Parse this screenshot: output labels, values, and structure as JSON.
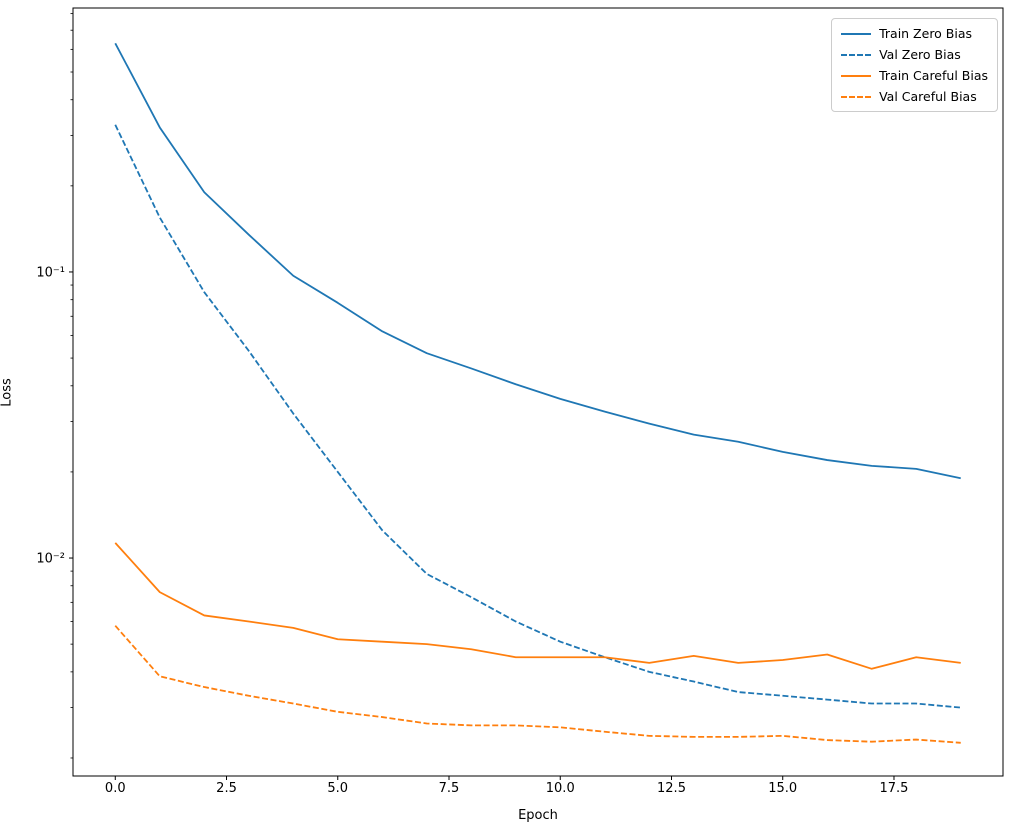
{
  "colors": {
    "blue": "#1f77b4",
    "orange": "#ff7f0e",
    "axis": "#000000",
    "legend_border": "#cccccc",
    "background": "#ffffff"
  },
  "chart_data": {
    "type": "line",
    "title": "",
    "xlabel": "Epoch",
    "ylabel": "Loss",
    "yscale": "log",
    "grid": false,
    "legend_position": "upper right",
    "xlim": [
      -0.95,
      19.95
    ],
    "ylim": [
      0.00173,
      0.837
    ],
    "x": [
      0,
      1,
      2,
      3,
      4,
      5,
      6,
      7,
      8,
      9,
      10,
      11,
      12,
      13,
      14,
      15,
      16,
      17,
      18,
      19
    ],
    "x_ticks": [
      0,
      2.5,
      5,
      7.5,
      10,
      12.5,
      15,
      17.5
    ],
    "x_tick_labels": [
      "0.0",
      "2.5",
      "5.0",
      "7.5",
      "10.0",
      "12.5",
      "15.0",
      "17.5"
    ],
    "y_ticks": [
      {
        "value": 0.1,
        "label": "10⁻¹"
      },
      {
        "value": 0.01,
        "label": "10⁻²"
      }
    ],
    "y_minor_ticks": [
      0.002,
      0.003,
      0.004,
      0.005,
      0.006,
      0.007,
      0.008,
      0.009,
      0.02,
      0.03,
      0.04,
      0.05,
      0.06,
      0.07,
      0.08,
      0.09,
      0.2,
      0.3,
      0.4,
      0.5,
      0.6,
      0.7,
      0.8
    ],
    "series": [
      {
        "name": "Train Zero Bias",
        "color": "#1f77b4",
        "style": "solid",
        "values": [
          0.63,
          0.32,
          0.19,
          0.135,
          0.097,
          0.078,
          0.062,
          0.052,
          0.046,
          0.0405,
          0.036,
          0.0325,
          0.0295,
          0.027,
          0.0255,
          0.0235,
          0.022,
          0.021,
          0.0205,
          0.019
        ]
      },
      {
        "name": "Val Zero Bias",
        "color": "#1f77b4",
        "style": "dashed",
        "values": [
          0.327,
          0.155,
          0.085,
          0.053,
          0.032,
          0.02,
          0.0125,
          0.0088,
          0.0073,
          0.006,
          0.0051,
          0.0045,
          0.004,
          0.0037,
          0.0034,
          0.0033,
          0.0032,
          0.0031,
          0.0031,
          0.003
        ]
      },
      {
        "name": "Train Careful Bias",
        "color": "#ff7f0e",
        "style": "solid",
        "values": [
          0.0113,
          0.0076,
          0.0063,
          0.006,
          0.0057,
          0.0052,
          0.0051,
          0.005,
          0.0048,
          0.0045,
          0.0045,
          0.0045,
          0.0043,
          0.00455,
          0.0043,
          0.0044,
          0.0046,
          0.0041,
          0.0045,
          0.0043
        ]
      },
      {
        "name": "Val Careful Bias",
        "color": "#ff7f0e",
        "style": "dashed",
        "values": [
          0.0058,
          0.00386,
          0.00354,
          0.0033,
          0.0031,
          0.0029,
          0.00278,
          0.00264,
          0.0026,
          0.0026,
          0.00256,
          0.00247,
          0.00239,
          0.00237,
          0.00237,
          0.00239,
          0.00231,
          0.00228,
          0.00232,
          0.00226
        ]
      }
    ]
  }
}
